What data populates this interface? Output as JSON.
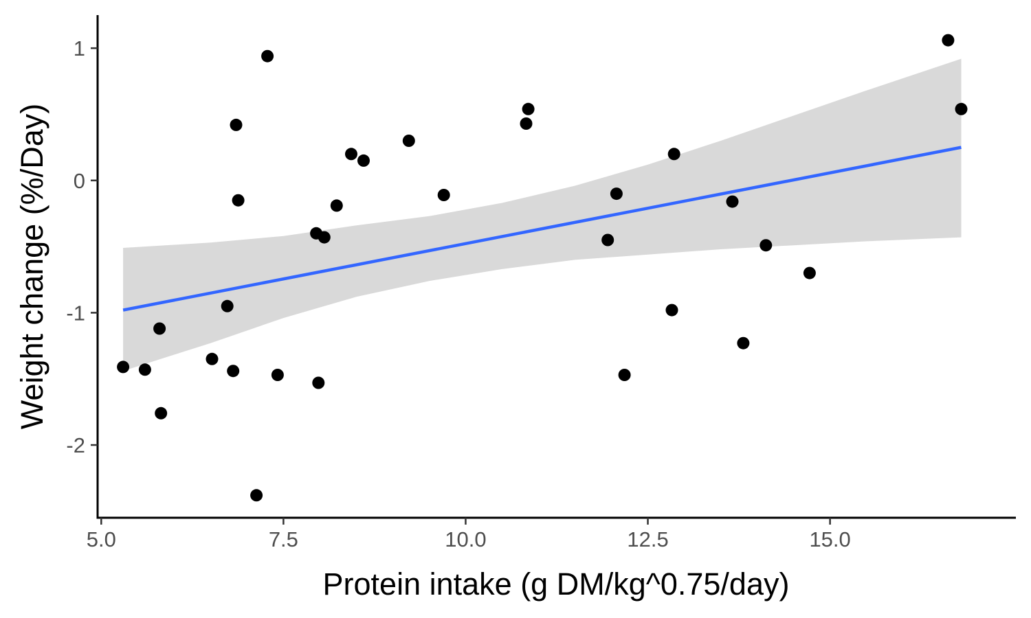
{
  "chart_data": {
    "type": "scatter",
    "title": "",
    "xlabel": "Protein intake (g DM/kg^0.75/day)",
    "ylabel": "Weight change (%/Day)",
    "xlim": [
      4.95,
      17.55
    ],
    "ylim": [
      -2.55,
      1.25
    ],
    "xticks": [
      5.0,
      7.5,
      10.0,
      12.5,
      15.0
    ],
    "xtick_labels": [
      "5.0",
      "7.5",
      "10.0",
      "12.5",
      "15.0"
    ],
    "yticks": [
      -2,
      -1,
      0,
      1
    ],
    "ytick_labels": [
      "-2",
      "-1",
      "0",
      "1"
    ],
    "grid": false,
    "legend": "none",
    "colors": {
      "points": "#000000",
      "fit_line": "#3366ff",
      "confidence_band": "#d9d9d9",
      "axis": "#000000",
      "tick_label": "#4d4d4d"
    },
    "points": [
      {
        "x": 5.3,
        "y": -1.41
      },
      {
        "x": 5.6,
        "y": -1.43
      },
      {
        "x": 5.8,
        "y": -1.12
      },
      {
        "x": 5.82,
        "y": -1.76
      },
      {
        "x": 6.52,
        "y": -1.35
      },
      {
        "x": 6.73,
        "y": -0.95
      },
      {
        "x": 6.81,
        "y": -1.44
      },
      {
        "x": 6.85,
        "y": 0.42
      },
      {
        "x": 6.88,
        "y": -0.15
      },
      {
        "x": 7.13,
        "y": -2.38
      },
      {
        "x": 7.28,
        "y": 0.94
      },
      {
        "x": 7.42,
        "y": -1.47
      },
      {
        "x": 7.95,
        "y": -0.4
      },
      {
        "x": 7.98,
        "y": -1.53
      },
      {
        "x": 8.06,
        "y": -0.43
      },
      {
        "x": 8.23,
        "y": -0.19
      },
      {
        "x": 8.43,
        "y": 0.2
      },
      {
        "x": 8.6,
        "y": 0.15
      },
      {
        "x": 9.22,
        "y": 0.3
      },
      {
        "x": 9.7,
        "y": -0.11
      },
      {
        "x": 10.83,
        "y": 0.43
      },
      {
        "x": 10.86,
        "y": 0.54
      },
      {
        "x": 11.95,
        "y": -0.45
      },
      {
        "x": 12.07,
        "y": -0.1
      },
      {
        "x": 12.18,
        "y": -1.47
      },
      {
        "x": 12.83,
        "y": -0.98
      },
      {
        "x": 12.86,
        "y": 0.2
      },
      {
        "x": 13.66,
        "y": -0.16
      },
      {
        "x": 13.81,
        "y": -1.23
      },
      {
        "x": 14.12,
        "y": -0.49
      },
      {
        "x": 14.72,
        "y": -0.7
      },
      {
        "x": 16.62,
        "y": 1.06
      },
      {
        "x": 16.8,
        "y": 0.54
      }
    ],
    "fit": {
      "method": "linear",
      "line": [
        {
          "x": 5.3,
          "y": -0.98
        },
        {
          "x": 16.8,
          "y": 0.25
        }
      ],
      "confidence_band": [
        {
          "x": 5.3,
          "lower": -1.44,
          "upper": -0.51
        },
        {
          "x": 6.5,
          "lower": -1.23,
          "upper": -0.47
        },
        {
          "x": 7.5,
          "lower": -1.04,
          "upper": -0.42
        },
        {
          "x": 8.5,
          "lower": -0.88,
          "upper": -0.34
        },
        {
          "x": 9.5,
          "lower": -0.76,
          "upper": -0.27
        },
        {
          "x": 10.5,
          "lower": -0.67,
          "upper": -0.17
        },
        {
          "x": 11.5,
          "lower": -0.6,
          "upper": -0.04
        },
        {
          "x": 12.5,
          "lower": -0.56,
          "upper": 0.12
        },
        {
          "x": 13.5,
          "lower": -0.52,
          "upper": 0.3
        },
        {
          "x": 14.5,
          "lower": -0.49,
          "upper": 0.49
        },
        {
          "x": 15.5,
          "lower": -0.46,
          "upper": 0.68
        },
        {
          "x": 16.8,
          "lower": -0.43,
          "upper": 0.92
        }
      ]
    }
  }
}
